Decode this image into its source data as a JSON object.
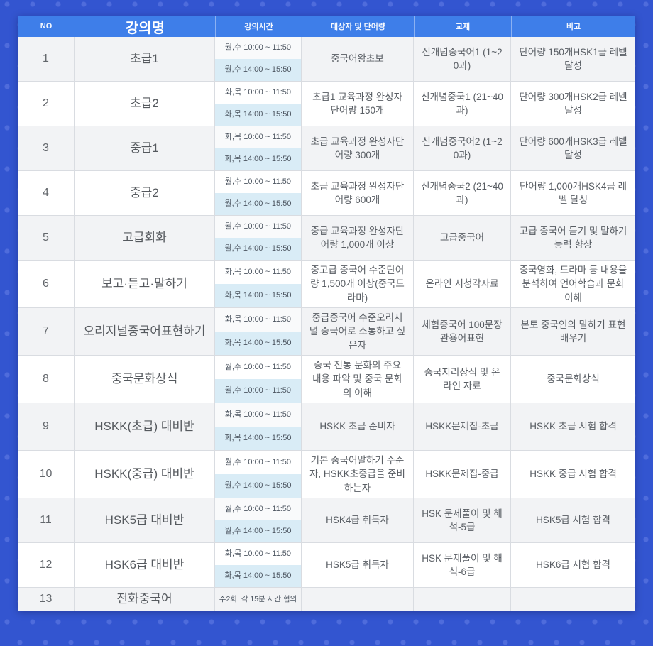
{
  "page": {
    "background_color": "#3355d0",
    "dot_color": "#4f6cdc",
    "header_bg": "#3e7ee9",
    "row_alt_bg": "#f2f3f5",
    "time_highlight_bg": "#d9ecf6"
  },
  "table": {
    "headers": {
      "no": "NO",
      "name": "강의명",
      "time": "강의시간",
      "target": "대상자 및 단어량",
      "book": "교재",
      "note": "비고"
    },
    "rows": [
      {
        "no": "1",
        "name": "초급1",
        "time1": "월,수 10:00 ~ 11:50",
        "time2": "월,수 14:00 ~ 15:50",
        "target": "중국어왕초보",
        "book": "신개념중국어1 (1~20과)",
        "note": "단어량 150개HSK1급 레벨 달성"
      },
      {
        "no": "2",
        "name": "초급2",
        "time1": "화,목 10:00 ~ 11:50",
        "time2": "화,목 14:00 ~ 15:50",
        "target": "초급1 교육과정 완성자단어량 150개",
        "book": "신개념중국1 (21~40과)",
        "note": "단어량 300개HSK2급 레벨 달성"
      },
      {
        "no": "3",
        "name": "중급1",
        "time1": "화,목 10:00 ~ 11:50",
        "time2": "화,목 14:00 ~ 15:50",
        "target": "초급 교육과정 완성자단어량 300개",
        "book": "신개념중국어2 (1~20과)",
        "note": "단어량 600개HSK3급 레벨 달성"
      },
      {
        "no": "4",
        "name": "중급2",
        "time1": "월,수 10:00 ~ 11:50",
        "time2": "월,수 14:00 ~ 15:50",
        "target": "초급 교육과정 완성자단어량 600개",
        "book": "신개념중국2 (21~40과)",
        "note": "단어량 1,000개HSK4급 레벨 달성"
      },
      {
        "no": "5",
        "name": "고급회화",
        "time1": "월,수 10:00 ~ 11:50",
        "time2": "월,수 14:00 ~ 15:50",
        "target": "중급 교육과정 완성자단어량 1,000개 이상",
        "book": "고급중국어",
        "note": "고급 중국어 듣기 및 말하기 능력 향상"
      },
      {
        "no": "6",
        "name": "보고·듣고·말하기",
        "time1": "화,목 10:00 ~ 11:50",
        "time2": "화,목 14:00 ~ 15:50",
        "target": "중고급 중국어 수준단어량 1,500개 이상(중국드라마)",
        "book": "온라인 시청각자료",
        "note": "중국영화, 드라마 등 내용을 분석하여 언어학습과 문화 이해"
      },
      {
        "no": "7",
        "name": "오리지널중국어표현하기",
        "time1": "화,목 10:00 ~ 11:50",
        "time2": "화,목 14:00 ~ 15:50",
        "target": "중급중국어 수준오리지널 중국어로 소통하고 싶은자",
        "book": "체험중국어 100문장 관용어표현",
        "note": "본토 중국인의 말하기 표현 배우기"
      },
      {
        "no": "8",
        "name": "중국문화상식",
        "time1": "월,수 10:00 ~ 11:50",
        "time2": "월,수 10:00 ~ 11:50",
        "target": "중국 전통 문화의 주요 내용 파악 및 중국 문화의 이해",
        "book": "중국지리상식 및 온라인 자료",
        "note": "중국문화상식"
      },
      {
        "no": "9",
        "name": "HSKK(초급) 대비반",
        "time1": "화,목 10:00 ~ 11:50",
        "time2": "화,목 14:00 ~ 15:50",
        "target": "HSKK 초급 준비자",
        "book": "HSKK문제집-초급",
        "note": "HSKK 초급 시험 합격"
      },
      {
        "no": "10",
        "name": "HSKK(중급) 대비반",
        "time1": "월,수 10:00 ~ 11:50",
        "time2": "월,수 14:00 ~ 15:50",
        "target": "기본 중국어말하기 수준자, HSKK초중급을 준비하는자",
        "book": "HSKK문제집-중급",
        "note": "HSKK 중급 시험 합격"
      },
      {
        "no": "11",
        "name": "HSK5급 대비반",
        "time1": "월,수 10:00 ~ 11:50",
        "time2": "월,수 14:00 ~ 15:50",
        "target": "HSK4급 취득자",
        "book": "HSK 문제풀이 및 해석-5급",
        "note": "HSK5급 시험 합격"
      },
      {
        "no": "12",
        "name": "HSK6급 대비반",
        "time1": "화,목 10:00 ~ 11:50",
        "time2": "화,목 14:00 ~ 15:50",
        "target": "HSK5급 취득자",
        "book": "HSK 문제풀이 및 해석-6급",
        "note": "HSK6급 시험 합격"
      },
      {
        "no": "13",
        "name": "전화중국어",
        "time1": "주2회, 각 15분 시간 협의",
        "time2": "",
        "target": "",
        "book": "",
        "note": ""
      }
    ]
  }
}
